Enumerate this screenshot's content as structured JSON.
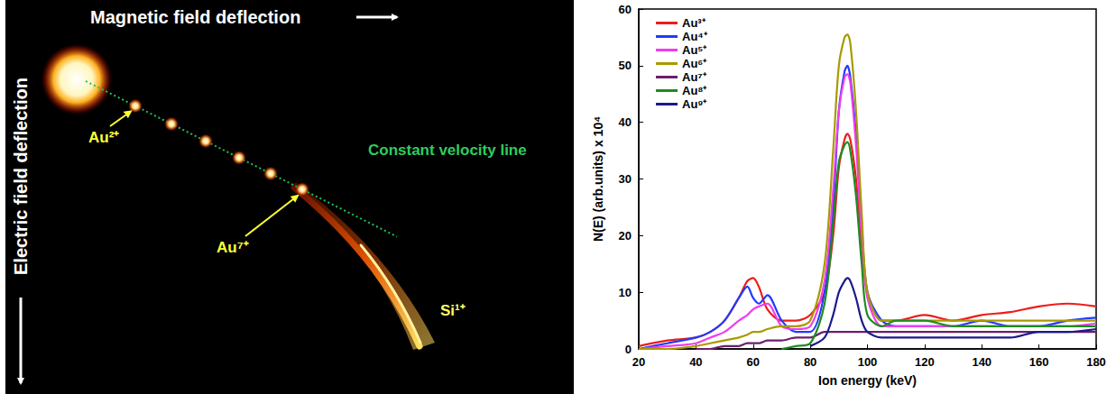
{
  "chart_data": {
    "type": "line",
    "x_label": "Ion energy (keV)",
    "y_label": "N(E) (arb.units) x 10⁴",
    "x": [
      20,
      30,
      40,
      45,
      50,
      55,
      58,
      60,
      62,
      65,
      70,
      75,
      80,
      85,
      88,
      90,
      92,
      93,
      94,
      96,
      98,
      100,
      105,
      110,
      120,
      130,
      140,
      150,
      160,
      170,
      180
    ],
    "series": [
      {
        "name": "Au³⁺",
        "color": "#ee1c1c",
        "values": [
          0.5,
          1.5,
          2,
          3,
          5,
          9,
          12,
          12.5,
          11,
          7,
          5,
          5,
          6,
          10,
          20,
          32,
          37,
          38,
          37,
          30,
          18,
          10,
          5,
          5,
          6,
          5,
          6,
          6.5,
          7.5,
          8,
          7.5
        ]
      },
      {
        "name": "Au⁴⁺",
        "color": "#1f3bff",
        "values": [
          0,
          1,
          2,
          3,
          5,
          9,
          11,
          9,
          8,
          9.5,
          5,
          3,
          3,
          10,
          25,
          42,
          49,
          50,
          48,
          38,
          22,
          10,
          5,
          4,
          4,
          4,
          5,
          4,
          4,
          5,
          5.5
        ]
      },
      {
        "name": "Au⁵⁺",
        "color": "#f03cf0",
        "values": [
          0,
          0.5,
          1,
          2,
          3,
          5,
          6,
          7,
          7.5,
          8,
          4,
          3.5,
          4,
          12,
          28,
          42,
          48,
          48.5,
          47,
          36,
          20,
          9,
          4,
          4,
          4,
          4,
          4,
          4,
          4,
          4,
          4.5
        ]
      },
      {
        "name": "Au⁶⁺",
        "color": "#a89a00",
        "values": [
          0,
          0,
          0.5,
          1,
          1.5,
          2,
          2.5,
          3,
          3,
          3.5,
          4,
          4,
          5,
          15,
          35,
          50,
          55,
          55.5,
          54,
          42,
          24,
          10,
          5,
          5,
          5,
          5,
          5,
          5,
          5,
          5,
          5
        ]
      },
      {
        "name": "Au⁷⁺",
        "color": "#6b1f6b",
        "values": [
          null,
          null,
          0,
          0,
          0.5,
          0.5,
          1,
          1,
          1,
          1.5,
          1.5,
          2,
          2,
          3,
          3,
          3,
          3,
          3,
          3,
          3,
          3,
          3,
          3,
          3,
          3,
          3,
          3,
          3,
          3,
          3,
          3
        ]
      },
      {
        "name": "Au⁸⁺",
        "color": "#1e8c1e",
        "values": [
          null,
          null,
          null,
          null,
          null,
          null,
          null,
          null,
          null,
          null,
          0,
          0.5,
          1,
          8,
          22,
          33,
          36,
          36.5,
          35,
          27,
          15,
          6,
          4,
          5,
          5,
          4,
          4,
          4,
          4,
          4,
          4
        ]
      },
      {
        "name": "Au⁹⁺",
        "color": "#1a1a8c",
        "values": [
          null,
          null,
          null,
          null,
          null,
          null,
          null,
          null,
          null,
          null,
          null,
          null,
          0.5,
          2,
          6,
          10,
          12,
          12.5,
          12,
          9,
          5,
          3,
          2,
          2,
          2,
          2,
          2,
          2,
          3,
          3,
          3.5
        ]
      }
    ],
    "xlim": [
      20,
      180
    ],
    "xticks": [
      20,
      40,
      60,
      80,
      100,
      120,
      140,
      160,
      180
    ],
    "ylim": [
      0,
      60
    ],
    "yticks": [
      0,
      10,
      20,
      30,
      40,
      50,
      60
    ],
    "grid": false,
    "legend": "upper left"
  },
  "image_panel": {
    "horizontal_arrow": "Magnetic field deflection",
    "vertical_arrow": "Electric field deflection",
    "line_label": "Constant velocity line",
    "spot_labels": [
      "Au²⁺",
      "Au⁷⁺"
    ],
    "trail_label": "Si¹⁺"
  }
}
